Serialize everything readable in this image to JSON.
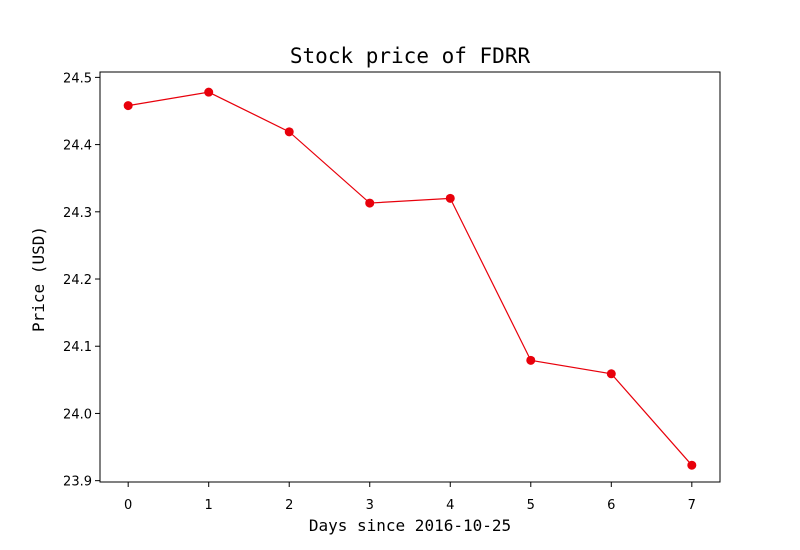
{
  "chart_data": {
    "type": "line",
    "title": "Stock price of FDRR",
    "xlabel": "Days since 2016-10-25",
    "ylabel": "Price (USD)",
    "x": [
      0,
      1,
      2,
      3,
      4,
      5,
      6,
      7
    ],
    "series": [
      {
        "values": [
          24.458,
          24.478,
          24.419,
          24.313,
          24.32,
          24.079,
          24.059,
          23.923
        ],
        "color": "#e8000b"
      }
    ],
    "xticks": [
      "0",
      "1",
      "2",
      "3",
      "4",
      "5",
      "6",
      "7"
    ],
    "yticks": [
      "23.9",
      "24.0",
      "24.1",
      "24.2",
      "24.3",
      "24.4",
      "24.5"
    ],
    "xlim": [
      -0.35,
      7.35
    ],
    "ylim": [
      23.898,
      24.508
    ],
    "grid": false,
    "legend": "none"
  }
}
